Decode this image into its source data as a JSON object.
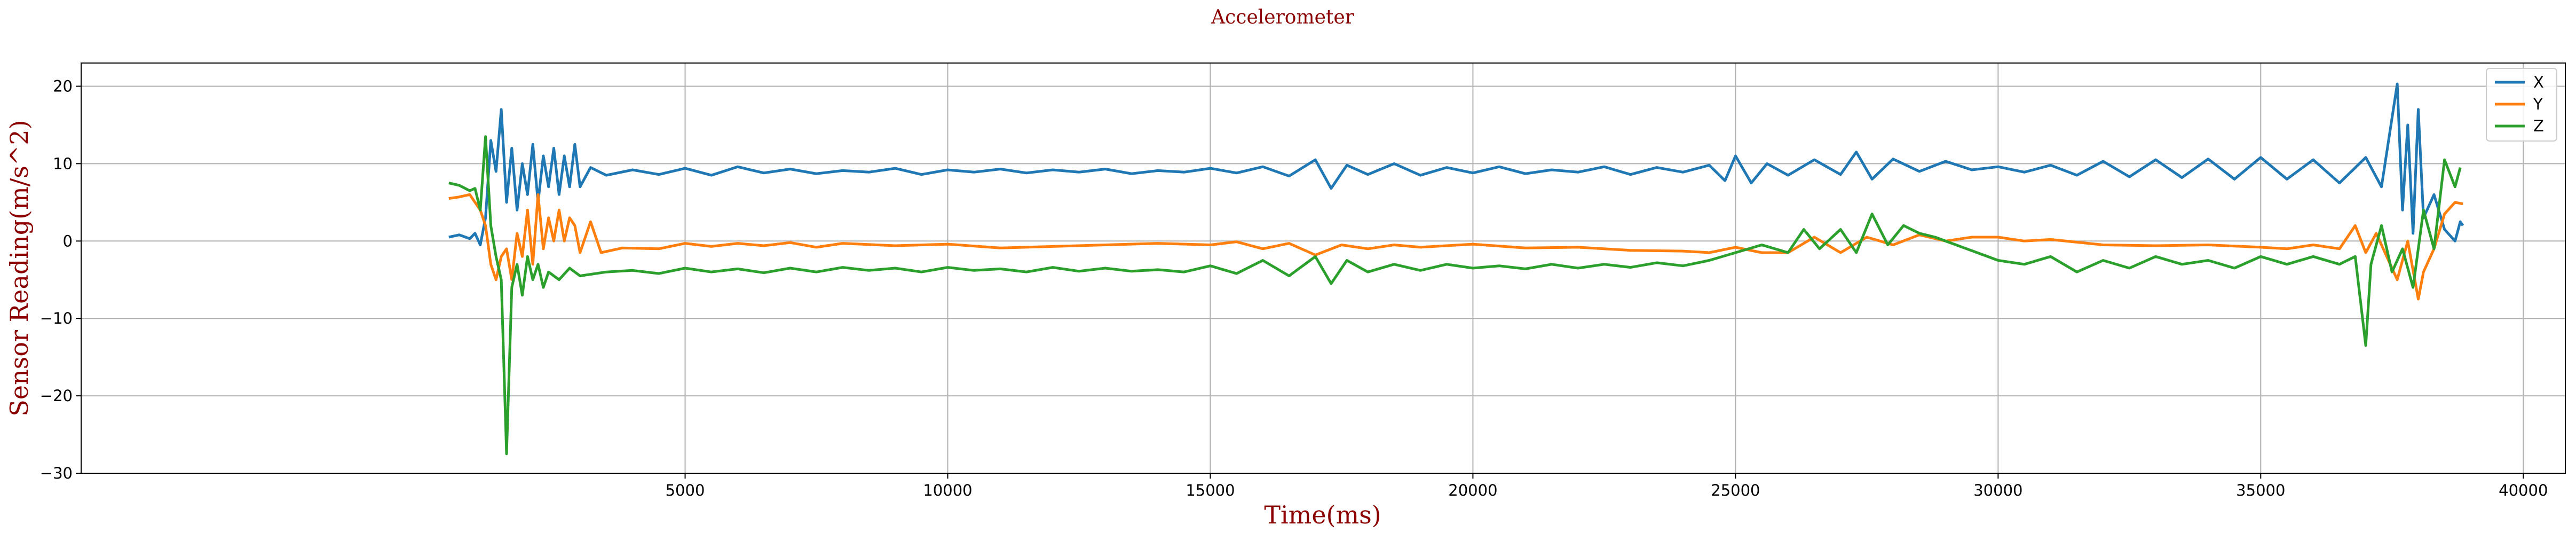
{
  "chart_data": {
    "type": "line",
    "title": "Accelerometer",
    "xlabel": "Time(ms)",
    "ylabel": "Sensor Reading(m/s^2)",
    "xlim": [
      -6500,
      40800
    ],
    "ylim": [
      -30,
      23
    ],
    "xticks": [
      5000,
      10000,
      15000,
      20000,
      25000,
      30000,
      35000,
      40000
    ],
    "yticks": [
      -30,
      -20,
      -10,
      0,
      10,
      20
    ],
    "grid": true,
    "legend_position": "top-right",
    "colors": {
      "X": "#1f77b4",
      "Y": "#ff7f0e",
      "Z": "#2ca02c"
    },
    "series": [
      {
        "name": "X",
        "color": "#1f77b4",
        "points": [
          [
            500,
            0.5
          ],
          [
            700,
            0.8
          ],
          [
            900,
            0.3
          ],
          [
            1000,
            1.0
          ],
          [
            1100,
            -0.5
          ],
          [
            1200,
            3.0
          ],
          [
            1300,
            13.0
          ],
          [
            1400,
            9.0
          ],
          [
            1500,
            17.0
          ],
          [
            1600,
            5.0
          ],
          [
            1700,
            12.0
          ],
          [
            1800,
            4.0
          ],
          [
            1900,
            10.0
          ],
          [
            2000,
            6.0
          ],
          [
            2100,
            12.5
          ],
          [
            2200,
            5.0
          ],
          [
            2300,
            11.0
          ],
          [
            2400,
            7.0
          ],
          [
            2500,
            12.0
          ],
          [
            2600,
            6.0
          ],
          [
            2700,
            11.0
          ],
          [
            2800,
            7.0
          ],
          [
            2900,
            12.5
          ],
          [
            3000,
            7.0
          ],
          [
            3200,
            9.5
          ],
          [
            3500,
            8.5
          ],
          [
            4000,
            9.2
          ],
          [
            4500,
            8.6
          ],
          [
            5000,
            9.4
          ],
          [
            5500,
            8.5
          ],
          [
            6000,
            9.6
          ],
          [
            6500,
            8.8
          ],
          [
            7000,
            9.3
          ],
          [
            7500,
            8.7
          ],
          [
            8000,
            9.1
          ],
          [
            8500,
            8.9
          ],
          [
            9000,
            9.4
          ],
          [
            9500,
            8.6
          ],
          [
            10000,
            9.2
          ],
          [
            10500,
            8.9
          ],
          [
            11000,
            9.3
          ],
          [
            11500,
            8.8
          ],
          [
            12000,
            9.2
          ],
          [
            12500,
            8.9
          ],
          [
            13000,
            9.3
          ],
          [
            13500,
            8.7
          ],
          [
            14000,
            9.1
          ],
          [
            14500,
            8.9
          ],
          [
            15000,
            9.4
          ],
          [
            15500,
            8.8
          ],
          [
            16000,
            9.6
          ],
          [
            16500,
            8.4
          ],
          [
            17000,
            10.5
          ],
          [
            17300,
            6.8
          ],
          [
            17600,
            9.8
          ],
          [
            18000,
            8.6
          ],
          [
            18500,
            10.0
          ],
          [
            19000,
            8.5
          ],
          [
            19500,
            9.5
          ],
          [
            20000,
            8.8
          ],
          [
            20500,
            9.6
          ],
          [
            21000,
            8.7
          ],
          [
            21500,
            9.2
          ],
          [
            22000,
            8.9
          ],
          [
            22500,
            9.6
          ],
          [
            23000,
            8.6
          ],
          [
            23500,
            9.5
          ],
          [
            24000,
            8.9
          ],
          [
            24500,
            9.8
          ],
          [
            24800,
            7.8
          ],
          [
            25000,
            11.0
          ],
          [
            25300,
            7.5
          ],
          [
            25600,
            10.0
          ],
          [
            26000,
            8.5
          ],
          [
            26500,
            10.5
          ],
          [
            27000,
            8.6
          ],
          [
            27300,
            11.5
          ],
          [
            27600,
            8.0
          ],
          [
            28000,
            10.6
          ],
          [
            28500,
            9.0
          ],
          [
            29000,
            10.3
          ],
          [
            29500,
            9.2
          ],
          [
            30000,
            9.6
          ],
          [
            30500,
            8.9
          ],
          [
            31000,
            9.8
          ],
          [
            31500,
            8.5
          ],
          [
            32000,
            10.3
          ],
          [
            32500,
            8.3
          ],
          [
            33000,
            10.5
          ],
          [
            33500,
            8.2
          ],
          [
            34000,
            10.6
          ],
          [
            34500,
            8.0
          ],
          [
            35000,
            10.8
          ],
          [
            35500,
            8.0
          ],
          [
            36000,
            10.5
          ],
          [
            36500,
            7.5
          ],
          [
            37000,
            10.8
          ],
          [
            37300,
            7.0
          ],
          [
            37600,
            20.3
          ],
          [
            37700,
            4.0
          ],
          [
            37800,
            15.0
          ],
          [
            37900,
            1.0
          ],
          [
            38000,
            17.0
          ],
          [
            38100,
            3.0
          ],
          [
            38300,
            6.0
          ],
          [
            38500,
            1.5
          ],
          [
            38700,
            0.0
          ],
          [
            38800,
            2.5
          ],
          [
            38850,
            2.0
          ]
        ]
      },
      {
        "name": "Y",
        "color": "#ff7f0e",
        "points": [
          [
            500,
            5.5
          ],
          [
            700,
            5.7
          ],
          [
            900,
            6.0
          ],
          [
            1100,
            4.0
          ],
          [
            1200,
            2.0
          ],
          [
            1300,
            -3.0
          ],
          [
            1400,
            -5.0
          ],
          [
            1500,
            -2.0
          ],
          [
            1600,
            -1.0
          ],
          [
            1700,
            -5.0
          ],
          [
            1800,
            1.0
          ],
          [
            1900,
            -2.0
          ],
          [
            2000,
            4.0
          ],
          [
            2100,
            -3.0
          ],
          [
            2200,
            6.0
          ],
          [
            2300,
            -1.0
          ],
          [
            2400,
            3.0
          ],
          [
            2500,
            0.0
          ],
          [
            2600,
            4.0
          ],
          [
            2700,
            0.0
          ],
          [
            2800,
            3.0
          ],
          [
            2900,
            2.0
          ],
          [
            3000,
            -1.5
          ],
          [
            3200,
            2.5
          ],
          [
            3400,
            -1.5
          ],
          [
            3800,
            -0.9
          ],
          [
            4500,
            -1.0
          ],
          [
            5000,
            -0.3
          ],
          [
            5500,
            -0.7
          ],
          [
            6000,
            -0.3
          ],
          [
            6500,
            -0.6
          ],
          [
            7000,
            -0.2
          ],
          [
            7500,
            -0.8
          ],
          [
            8000,
            -0.3
          ],
          [
            9000,
            -0.6
          ],
          [
            10000,
            -0.4
          ],
          [
            11000,
            -0.9
          ],
          [
            12000,
            -0.7
          ],
          [
            13000,
            -0.5
          ],
          [
            14000,
            -0.3
          ],
          [
            15000,
            -0.5
          ],
          [
            15500,
            -0.1
          ],
          [
            16000,
            -1.0
          ],
          [
            16500,
            -0.3
          ],
          [
            17000,
            -1.8
          ],
          [
            17500,
            -0.5
          ],
          [
            18000,
            -1.0
          ],
          [
            18500,
            -0.5
          ],
          [
            19000,
            -0.8
          ],
          [
            20000,
            -0.4
          ],
          [
            21000,
            -0.9
          ],
          [
            22000,
            -0.8
          ],
          [
            23000,
            -1.2
          ],
          [
            24000,
            -1.3
          ],
          [
            24500,
            -1.5
          ],
          [
            25000,
            -0.8
          ],
          [
            25500,
            -1.5
          ],
          [
            26000,
            -1.5
          ],
          [
            26500,
            0.5
          ],
          [
            27000,
            -1.5
          ],
          [
            27500,
            0.5
          ],
          [
            28000,
            -0.5
          ],
          [
            28500,
            0.8
          ],
          [
            29000,
            0.0
          ],
          [
            29500,
            0.5
          ],
          [
            30000,
            0.5
          ],
          [
            30500,
            0.0
          ],
          [
            31000,
            0.2
          ],
          [
            32000,
            -0.5
          ],
          [
            33000,
            -0.6
          ],
          [
            34000,
            -0.5
          ],
          [
            35000,
            -0.8
          ],
          [
            35500,
            -1.0
          ],
          [
            36000,
            -0.5
          ],
          [
            36500,
            -1.0
          ],
          [
            36800,
            2.0
          ],
          [
            37000,
            -1.5
          ],
          [
            37200,
            1.0
          ],
          [
            37400,
            -2.0
          ],
          [
            37600,
            -5.0
          ],
          [
            37800,
            0.0
          ],
          [
            38000,
            -7.5
          ],
          [
            38100,
            -4.0
          ],
          [
            38300,
            -1.0
          ],
          [
            38500,
            3.5
          ],
          [
            38700,
            5.0
          ],
          [
            38850,
            4.8
          ]
        ]
      },
      {
        "name": "Z",
        "color": "#2ca02c",
        "points": [
          [
            500,
            7.5
          ],
          [
            700,
            7.2
          ],
          [
            900,
            6.5
          ],
          [
            1000,
            6.8
          ],
          [
            1100,
            4.0
          ],
          [
            1200,
            13.5
          ],
          [
            1300,
            2.0
          ],
          [
            1400,
            -2.0
          ],
          [
            1500,
            -5.0
          ],
          [
            1600,
            -27.5
          ],
          [
            1700,
            -6.0
          ],
          [
            1800,
            -3.0
          ],
          [
            1900,
            -7.0
          ],
          [
            2000,
            -2.0
          ],
          [
            2100,
            -5.0
          ],
          [
            2200,
            -3.0
          ],
          [
            2300,
            -6.0
          ],
          [
            2400,
            -4.0
          ],
          [
            2600,
            -5.0
          ],
          [
            2800,
            -3.5
          ],
          [
            3000,
            -4.5
          ],
          [
            3500,
            -4.0
          ],
          [
            4000,
            -3.8
          ],
          [
            4500,
            -4.2
          ],
          [
            5000,
            -3.5
          ],
          [
            5500,
            -4.0
          ],
          [
            6000,
            -3.6
          ],
          [
            6500,
            -4.1
          ],
          [
            7000,
            -3.5
          ],
          [
            7500,
            -4.0
          ],
          [
            8000,
            -3.4
          ],
          [
            8500,
            -3.8
          ],
          [
            9000,
            -3.5
          ],
          [
            9500,
            -4.0
          ],
          [
            10000,
            -3.4
          ],
          [
            10500,
            -3.8
          ],
          [
            11000,
            -3.6
          ],
          [
            11500,
            -4.0
          ],
          [
            12000,
            -3.4
          ],
          [
            12500,
            -3.9
          ],
          [
            13000,
            -3.5
          ],
          [
            13500,
            -3.9
          ],
          [
            14000,
            -3.7
          ],
          [
            14500,
            -4.0
          ],
          [
            15000,
            -3.2
          ],
          [
            15500,
            -4.2
          ],
          [
            16000,
            -2.5
          ],
          [
            16500,
            -4.5
          ],
          [
            17000,
            -2.0
          ],
          [
            17300,
            -5.5
          ],
          [
            17600,
            -2.5
          ],
          [
            18000,
            -4.0
          ],
          [
            18500,
            -3.0
          ],
          [
            19000,
            -3.8
          ],
          [
            19500,
            -3.0
          ],
          [
            20000,
            -3.5
          ],
          [
            20500,
            -3.2
          ],
          [
            21000,
            -3.6
          ],
          [
            21500,
            -3.0
          ],
          [
            22000,
            -3.5
          ],
          [
            22500,
            -3.0
          ],
          [
            23000,
            -3.4
          ],
          [
            23500,
            -2.8
          ],
          [
            24000,
            -3.2
          ],
          [
            24500,
            -2.5
          ],
          [
            25000,
            -1.5
          ],
          [
            25500,
            -0.5
          ],
          [
            26000,
            -1.5
          ],
          [
            26300,
            1.5
          ],
          [
            26600,
            -1.0
          ],
          [
            27000,
            1.5
          ],
          [
            27300,
            -1.5
          ],
          [
            27600,
            3.5
          ],
          [
            27900,
            -0.5
          ],
          [
            28200,
            2.0
          ],
          [
            28500,
            1.0
          ],
          [
            28800,
            0.5
          ],
          [
            29200,
            -0.5
          ],
          [
            29600,
            -1.5
          ],
          [
            30000,
            -2.5
          ],
          [
            30500,
            -3.0
          ],
          [
            31000,
            -2.0
          ],
          [
            31500,
            -4.0
          ],
          [
            32000,
            -2.5
          ],
          [
            32500,
            -3.5
          ],
          [
            33000,
            -2.0
          ],
          [
            33500,
            -3.0
          ],
          [
            34000,
            -2.5
          ],
          [
            34500,
            -3.5
          ],
          [
            35000,
            -2.0
          ],
          [
            35500,
            -3.0
          ],
          [
            36000,
            -2.0
          ],
          [
            36500,
            -3.0
          ],
          [
            36800,
            -2.0
          ],
          [
            37000,
            -13.5
          ],
          [
            37100,
            -3.0
          ],
          [
            37300,
            2.0
          ],
          [
            37500,
            -4.0
          ],
          [
            37700,
            -1.0
          ],
          [
            37900,
            -6.0
          ],
          [
            38100,
            4.0
          ],
          [
            38300,
            -1.0
          ],
          [
            38500,
            10.5
          ],
          [
            38700,
            7.0
          ],
          [
            38800,
            9.5
          ]
        ]
      }
    ]
  }
}
